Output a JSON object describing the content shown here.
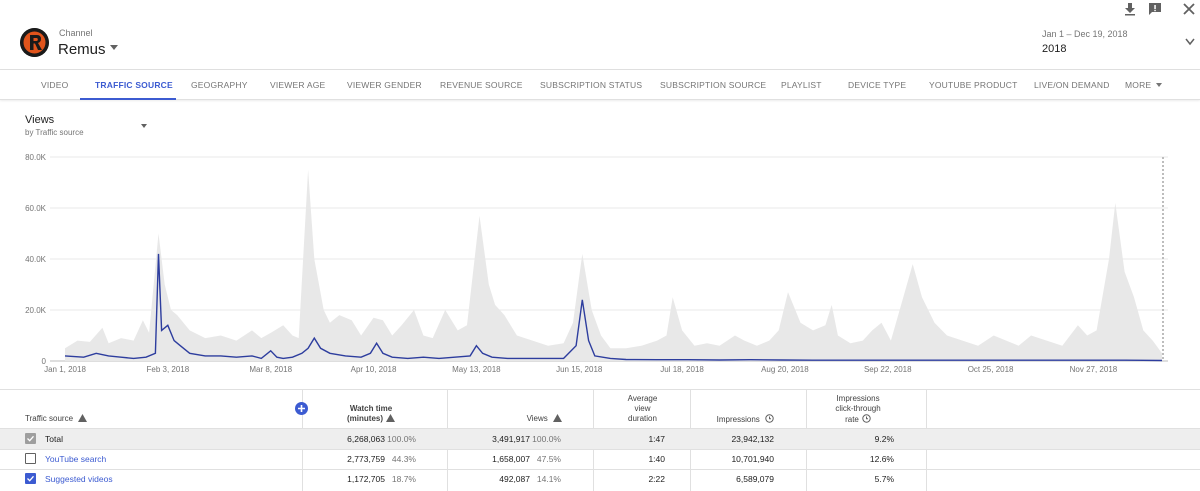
{
  "header": {
    "channel_label": "Channel",
    "channel_name": "Remus",
    "date_range": "Jan 1 – Dec 19, 2018",
    "date_preset": "2018"
  },
  "tabs": [
    {
      "label": "VIDEO",
      "active": false
    },
    {
      "label": "TRAFFIC SOURCE",
      "active": true
    },
    {
      "label": "GEOGRAPHY",
      "active": false
    },
    {
      "label": "VIEWER AGE",
      "active": false
    },
    {
      "label": "VIEWER GENDER",
      "active": false
    },
    {
      "label": "REVENUE SOURCE",
      "active": false
    },
    {
      "label": "SUBSCRIPTION STATUS",
      "active": false
    },
    {
      "label": "SUBSCRIPTION SOURCE",
      "active": false
    },
    {
      "label": "PLAYLIST",
      "active": false
    },
    {
      "label": "DEVICE TYPE",
      "active": false
    },
    {
      "label": "YOUTUBE PRODUCT",
      "active": false
    },
    {
      "label": "LIVE/ON DEMAND",
      "active": false
    },
    {
      "label": "MORE",
      "active": false
    }
  ],
  "metric": {
    "title": "Views",
    "subtitle": "by Traffic source"
  },
  "colors": {
    "accent": "#3c5bd1",
    "total_area": "#e8e8e8",
    "series_line": "#2d3d9e"
  },
  "chart_data": {
    "type": "area",
    "y_ticks": [
      "0",
      "20.0K",
      "40.0K",
      "60.0K",
      "80.0K"
    ],
    "y_tick_values": [
      0,
      20000,
      40000,
      60000,
      80000
    ],
    "ylim": [
      0,
      80000
    ],
    "x_ticks": [
      "Jan 1, 2018",
      "Feb 3, 2018",
      "Mar 8, 2018",
      "Apr 10, 2018",
      "May 13, 2018",
      "Jun 15, 2018",
      "Jul 18, 2018",
      "Aug 20, 2018",
      "Sep 22, 2018",
      "Oct 25, 2018",
      "Nov 27, 2018"
    ],
    "x_tick_days": [
      0,
      33,
      66,
      99,
      132,
      165,
      198,
      231,
      264,
      297,
      330
    ],
    "x_range_days": [
      0,
      352
    ],
    "grid": true,
    "series": [
      {
        "name": "Total",
        "style": "area",
        "points": [
          [
            0,
            5000
          ],
          [
            4,
            8000
          ],
          [
            8,
            7500
          ],
          [
            12,
            13000
          ],
          [
            14,
            7000
          ],
          [
            18,
            9000
          ],
          [
            22,
            8000
          ],
          [
            25,
            16000
          ],
          [
            27,
            11000
          ],
          [
            30,
            50000
          ],
          [
            32,
            30000
          ],
          [
            34,
            20000
          ],
          [
            36,
            18000
          ],
          [
            40,
            12000
          ],
          [
            45,
            9000
          ],
          [
            50,
            10000
          ],
          [
            55,
            8000
          ],
          [
            60,
            12000
          ],
          [
            63,
            9000
          ],
          [
            66,
            11000
          ],
          [
            70,
            14000
          ],
          [
            73,
            10000
          ],
          [
            75,
            9000
          ],
          [
            78,
            75000
          ],
          [
            80,
            40000
          ],
          [
            83,
            20000
          ],
          [
            85,
            15000
          ],
          [
            88,
            18000
          ],
          [
            92,
            16000
          ],
          [
            95,
            10000
          ],
          [
            99,
            17000
          ],
          [
            102,
            16000
          ],
          [
            105,
            10000
          ],
          [
            108,
            14000
          ],
          [
            112,
            20000
          ],
          [
            115,
            10000
          ],
          [
            118,
            9000
          ],
          [
            122,
            20000
          ],
          [
            126,
            12000
          ],
          [
            129,
            14000
          ],
          [
            133,
            57000
          ],
          [
            136,
            30000
          ],
          [
            138,
            22000
          ],
          [
            141,
            18000
          ],
          [
            145,
            10000
          ],
          [
            150,
            8000
          ],
          [
            155,
            6000
          ],
          [
            160,
            7000
          ],
          [
            163,
            15000
          ],
          [
            166,
            42000
          ],
          [
            169,
            20000
          ],
          [
            172,
            10000
          ],
          [
            175,
            5000
          ],
          [
            180,
            5000
          ],
          [
            185,
            6000
          ],
          [
            190,
            8000
          ],
          [
            193,
            10000
          ],
          [
            195,
            25000
          ],
          [
            198,
            12000
          ],
          [
            202,
            6000
          ],
          [
            206,
            7000
          ],
          [
            210,
            6000
          ],
          [
            215,
            10000
          ],
          [
            218,
            8000
          ],
          [
            222,
            6000
          ],
          [
            226,
            8000
          ],
          [
            229,
            12000
          ],
          [
            232,
            27000
          ],
          [
            236,
            15000
          ],
          [
            240,
            12000
          ],
          [
            244,
            14000
          ],
          [
            246,
            22000
          ],
          [
            248,
            10000
          ],
          [
            252,
            7000
          ],
          [
            256,
            8000
          ],
          [
            259,
            12000
          ],
          [
            262,
            15000
          ],
          [
            265,
            8000
          ],
          [
            269,
            25000
          ],
          [
            272,
            38000
          ],
          [
            275,
            25000
          ],
          [
            279,
            15000
          ],
          [
            283,
            10000
          ],
          [
            288,
            8000
          ],
          [
            293,
            6000
          ],
          [
            298,
            10000
          ],
          [
            302,
            8000
          ],
          [
            306,
            6000
          ],
          [
            310,
            10000
          ],
          [
            315,
            8000
          ],
          [
            320,
            6000
          ],
          [
            325,
            14000
          ],
          [
            328,
            10000
          ],
          [
            331,
            12000
          ],
          [
            335,
            40000
          ],
          [
            337,
            62000
          ],
          [
            340,
            35000
          ],
          [
            343,
            25000
          ],
          [
            346,
            12000
          ],
          [
            349,
            8000
          ],
          [
            352,
            3000
          ]
        ]
      },
      {
        "name": "Suggested videos",
        "style": "line",
        "points": [
          [
            0,
            2000
          ],
          [
            6,
            1500
          ],
          [
            10,
            3000
          ],
          [
            14,
            2000
          ],
          [
            18,
            1500
          ],
          [
            22,
            1000
          ],
          [
            26,
            1500
          ],
          [
            29,
            3000
          ],
          [
            30,
            42000
          ],
          [
            31,
            12000
          ],
          [
            33,
            14000
          ],
          [
            35,
            8000
          ],
          [
            37,
            6000
          ],
          [
            40,
            3000
          ],
          [
            45,
            2000
          ],
          [
            50,
            2000
          ],
          [
            55,
            1500
          ],
          [
            60,
            2000
          ],
          [
            63,
            1000
          ],
          [
            66,
            4000
          ],
          [
            68,
            1500
          ],
          [
            70,
            1000
          ],
          [
            73,
            1500
          ],
          [
            76,
            3000
          ],
          [
            78,
            5000
          ],
          [
            80,
            9000
          ],
          [
            82,
            5000
          ],
          [
            85,
            3000
          ],
          [
            90,
            2000
          ],
          [
            95,
            1500
          ],
          [
            98,
            3000
          ],
          [
            100,
            7000
          ],
          [
            102,
            3000
          ],
          [
            105,
            1500
          ],
          [
            110,
            1000
          ],
          [
            115,
            1500
          ],
          [
            120,
            1000
          ],
          [
            125,
            1500
          ],
          [
            130,
            2000
          ],
          [
            132,
            6000
          ],
          [
            134,
            3000
          ],
          [
            137,
            1500
          ],
          [
            142,
            1000
          ],
          [
            150,
            1000
          ],
          [
            155,
            1000
          ],
          [
            160,
            1000
          ],
          [
            164,
            6000
          ],
          [
            166,
            24000
          ],
          [
            168,
            8000
          ],
          [
            170,
            2000
          ],
          [
            175,
            1000
          ],
          [
            180,
            600
          ],
          [
            190,
            500
          ],
          [
            200,
            500
          ],
          [
            210,
            400
          ],
          [
            220,
            500
          ],
          [
            230,
            400
          ],
          [
            240,
            300
          ],
          [
            250,
            300
          ],
          [
            260,
            300
          ],
          [
            270,
            300
          ],
          [
            280,
            300
          ],
          [
            290,
            300
          ],
          [
            300,
            300
          ],
          [
            310,
            300
          ],
          [
            320,
            300
          ],
          [
            330,
            300
          ],
          [
            340,
            300
          ],
          [
            352,
            200
          ]
        ]
      }
    ]
  },
  "table": {
    "headers": {
      "source": "Traffic source",
      "watch_time_1": "Watch time",
      "watch_time_2": "(minutes)",
      "views": "Views",
      "avg_1": "Average",
      "avg_2": "view",
      "avg_3": "duration",
      "impressions": "Impressions",
      "ctr_1": "Impressions",
      "ctr_2": "click-through",
      "ctr_3": "rate"
    },
    "rows": [
      {
        "source": "Total",
        "watch": "6,268,063",
        "watch_pct": "100.0%",
        "views": "3,491,917",
        "views_pct": "100.0%",
        "avg": "1:47",
        "impressions": "23,942,132",
        "ctr": "9.2%",
        "checkbox": "grey"
      },
      {
        "source": "YouTube search",
        "watch": "2,773,759",
        "watch_pct": "44.3%",
        "views": "1,658,007",
        "views_pct": "47.5%",
        "avg": "1:40",
        "impressions": "10,701,940",
        "ctr": "12.6%",
        "checkbox": "empty"
      },
      {
        "source": "Suggested videos",
        "watch": "1,172,705",
        "watch_pct": "18.7%",
        "views": "492,087",
        "views_pct": "14.1%",
        "avg": "2:22",
        "impressions": "6,589,079",
        "ctr": "5.7%",
        "checkbox": "blue"
      }
    ]
  }
}
